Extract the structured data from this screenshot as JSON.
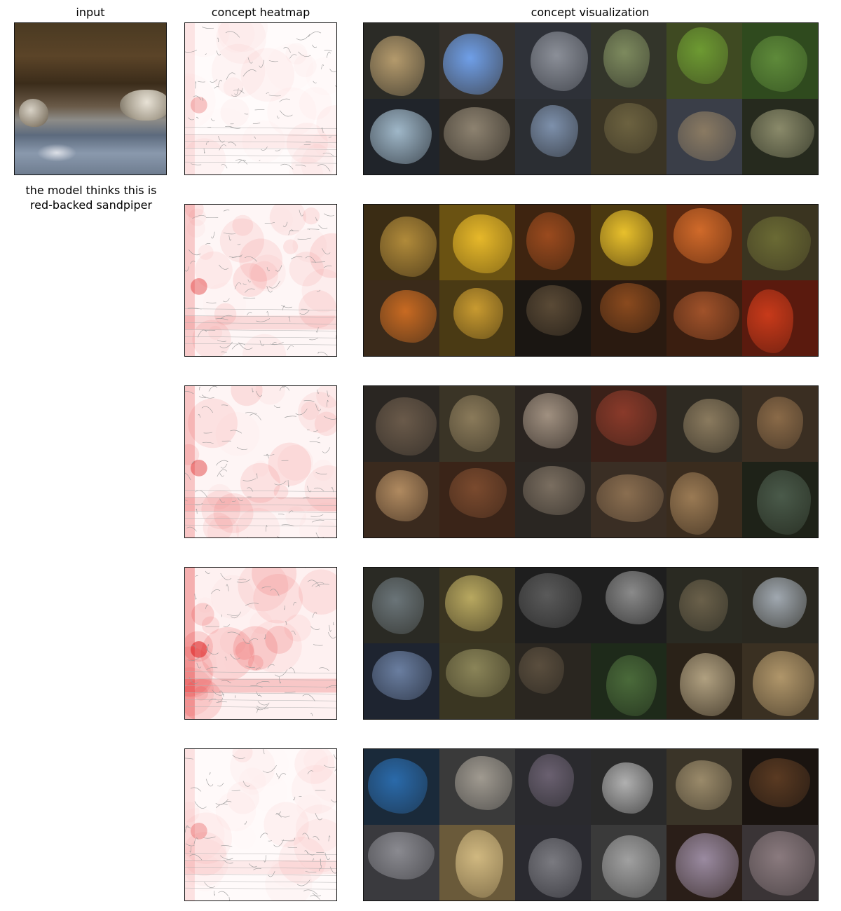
{
  "headers": {
    "input": "input",
    "heatmap": "concept heatmap",
    "visualization": "concept visualization"
  },
  "caption": {
    "line1": "the model thinks this is",
    "line2": "red-backed sandpiper"
  },
  "concepts": [
    {
      "heat_level": 0.25,
      "theme": "birds",
      "tiles": [
        {
          "name": "tile-sandpiper-on-sand",
          "bg": "#2b2b26",
          "blob": "#b49a6c"
        },
        {
          "name": "tile-sandpiper-blue-sky",
          "bg": "#35302a",
          "blob": "#6f9fe8"
        },
        {
          "name": "tile-sandpiper-water",
          "bg": "#2e3138",
          "blob": "#8b8f98"
        },
        {
          "name": "tile-sandpiper-grass",
          "bg": "#33352a",
          "blob": "#7d8a5e"
        },
        {
          "name": "tile-sandpiper-post",
          "bg": "#3f4a22",
          "blob": "#6d9a32"
        },
        {
          "name": "tile-sandpiper-foliage",
          "bg": "#2f4a1e",
          "blob": "#5e8a3a"
        },
        {
          "name": "tile-bird-shoreline",
          "bg": "#20242a",
          "blob": "#9fb7c8"
        },
        {
          "name": "tile-sandpiper-beach",
          "bg": "#2a2620",
          "blob": "#8d8270"
        },
        {
          "name": "tile-sandpiper-shallows",
          "bg": "#2b2e33",
          "blob": "#7d90ab"
        },
        {
          "name": "tile-sandpiper-dark",
          "bg": "#3a3424",
          "blob": "#6c6240"
        },
        {
          "name": "tile-bird-closeup",
          "bg": "#3a3e48",
          "blob": "#8a7a62"
        },
        {
          "name": "tile-ptarmigan",
          "bg": "#262a1e",
          "blob": "#8a8a6a"
        }
      ]
    },
    {
      "heat_level": 0.55,
      "theme": "food",
      "tiles": [
        {
          "name": "tile-bean-salad",
          "bg": "#3a2c14",
          "blob": "#b08a3a"
        },
        {
          "name": "tile-corn-kernels",
          "bg": "#6a5212",
          "blob": "#e6b82a"
        },
        {
          "name": "tile-stir-fry",
          "bg": "#3e2410",
          "blob": "#9a4a1e"
        },
        {
          "name": "tile-corn-closeup",
          "bg": "#4a3810",
          "blob": "#e8c02c"
        },
        {
          "name": "tile-carrot-dish",
          "bg": "#5a2810",
          "blob": "#d06a2a"
        },
        {
          "name": "tile-vegetable-soup",
          "bg": "#3a3420",
          "blob": "#6a6a34"
        },
        {
          "name": "tile-orange-drawer",
          "bg": "#3a2a1a",
          "blob": "#c86a22"
        },
        {
          "name": "tile-salsa",
          "bg": "#4a3a14",
          "blob": "#c89a30"
        },
        {
          "name": "tile-dark-bowl",
          "bg": "#1a1612",
          "blob": "#5a4a36"
        },
        {
          "name": "tile-soup-bowl",
          "bg": "#2a1a10",
          "blob": "#8a4a1e"
        },
        {
          "name": "tile-veggie-closeup",
          "bg": "#3a1e10",
          "blob": "#a0522a"
        },
        {
          "name": "tile-pasta-sauce",
          "bg": "#5a1a0e",
          "blob": "#c83a1a"
        }
      ]
    },
    {
      "heat_level": 0.6,
      "theme": "mushrooms",
      "tiles": [
        {
          "name": "tile-mushroom-cluster",
          "bg": "#2a2622",
          "blob": "#6a5a4a"
        },
        {
          "name": "tile-bracket-fungus",
          "bg": "#3a3426",
          "blob": "#8a7a5a"
        },
        {
          "name": "tile-pale-mushroom",
          "bg": "#2a2420",
          "blob": "#a09080"
        },
        {
          "name": "tile-market-stall",
          "bg": "#3a2018",
          "blob": "#8a3a2a"
        },
        {
          "name": "tile-fungus-log",
          "bg": "#2e2a22",
          "blob": "#8a7a5e"
        },
        {
          "name": "tile-brown-mushroom",
          "bg": "#3a2e22",
          "blob": "#8a6a48"
        },
        {
          "name": "tile-dog-fur",
          "bg": "#3a2a1e",
          "blob": "#b08a60"
        },
        {
          "name": "tile-shelf-fungus",
          "bg": "#3a2418",
          "blob": "#7a4a2e"
        },
        {
          "name": "tile-mushroom-field",
          "bg": "#2a2622",
          "blob": "#7a6e60"
        },
        {
          "name": "tile-forest-floor",
          "bg": "#3a2e24",
          "blob": "#8a6e50"
        },
        {
          "name": "tile-maitake",
          "bg": "#3a2c1e",
          "blob": "#9a7a54"
        },
        {
          "name": "tile-crowd",
          "bg": "#1e2218",
          "blob": "#4a5a4a"
        }
      ]
    },
    {
      "heat_level": 0.85,
      "theme": "water",
      "tiles": [
        {
          "name": "tile-river-fish",
          "bg": "#2a2a24",
          "blob": "#6a7478"
        },
        {
          "name": "tile-golden-water",
          "bg": "#3a3420",
          "blob": "#b8a860"
        },
        {
          "name": "tile-daisy",
          "bg": "#1e1e1e",
          "blob": "#5a5a5a"
        },
        {
          "name": "tile-white-patches",
          "bg": "#1e1e1e",
          "blob": "#8a8a8a"
        },
        {
          "name": "tile-stream",
          "bg": "#2a2a22",
          "blob": "#6a604a"
        },
        {
          "name": "tile-rapids",
          "bg": "#2a2820",
          "blob": "#a0a8b0"
        },
        {
          "name": "tile-dolphin",
          "bg": "#1e2430",
          "blob": "#6a7ea0"
        },
        {
          "name": "tile-murky-water",
          "bg": "#3a3622",
          "blob": "#8a8458"
        },
        {
          "name": "tile-duck",
          "bg": "#2a2620",
          "blob": "#5a4e3e"
        },
        {
          "name": "tile-lily-pads",
          "bg": "#1e2a1a",
          "blob": "#4a6a3a"
        },
        {
          "name": "tile-dried-leaves",
          "bg": "#2a2218",
          "blob": "#b0a080"
        },
        {
          "name": "tile-sandy-shore",
          "bg": "#3a3022",
          "blob": "#b0966a"
        }
      ]
    },
    {
      "heat_level": 0.3,
      "theme": "stripes",
      "tiles": [
        {
          "name": "tile-blue-shelves",
          "bg": "#1a2a3a",
          "blob": "#2a6aaa"
        },
        {
          "name": "tile-wood-sticks",
          "bg": "#3a3a3a",
          "blob": "#a09a90"
        },
        {
          "name": "tile-dvd-stack",
          "bg": "#2a2a2e",
          "blob": "#6a6070"
        },
        {
          "name": "tile-window-blinds",
          "bg": "#2a2a2a",
          "blob": "#b0b0b0"
        },
        {
          "name": "tile-cassettes",
          "bg": "#3a3428",
          "blob": "#9a8a6a"
        },
        {
          "name": "tile-dark-blinds",
          "bg": "#1a1410",
          "blob": "#5a3a22"
        },
        {
          "name": "tile-radio",
          "bg": "#3a3a3e",
          "blob": "#8a8a90"
        },
        {
          "name": "tile-beige-blinds",
          "bg": "#6a5a3a",
          "blob": "#d0b880"
        },
        {
          "name": "tile-book-spines",
          "bg": "#2a2a30",
          "blob": "#7a7a80"
        },
        {
          "name": "tile-menu-board",
          "bg": "#3a3a3a",
          "blob": "#a0a0a0"
        },
        {
          "name": "tile-lamp",
          "bg": "#2a1e18",
          "blob": "#9a8aa0"
        },
        {
          "name": "tile-stacked-plates",
          "bg": "#3a3436",
          "blob": "#8a7a7e"
        }
      ]
    }
  ]
}
